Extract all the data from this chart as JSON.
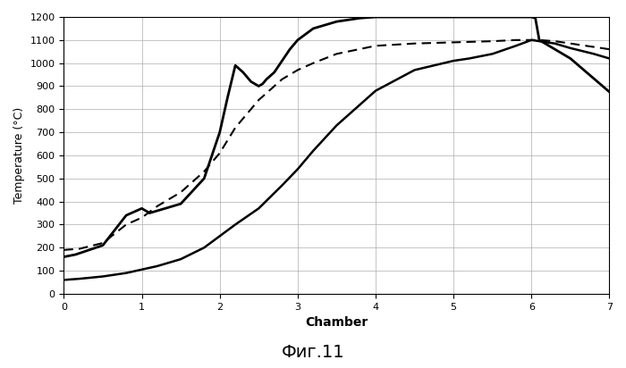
{
  "title": "",
  "xlabel": "Chamber",
  "ylabel": "Temperature (°C)",
  "caption": "Фиг.11",
  "xlim": [
    0,
    7
  ],
  "ylim": [
    0,
    1200
  ],
  "xticks": [
    0,
    1,
    2,
    3,
    4,
    5,
    6,
    7
  ],
  "yticks": [
    0,
    100,
    200,
    300,
    400,
    500,
    600,
    700,
    800,
    900,
    1000,
    1100,
    1200
  ],
  "curve1_x": [
    0,
    0.15,
    0.5,
    0.8,
    1.0,
    1.05,
    1.1,
    1.5,
    1.8,
    2.0,
    2.1,
    2.2,
    2.3,
    2.4,
    2.5,
    2.55,
    2.6,
    2.7,
    2.8,
    2.9,
    3.0,
    3.2,
    3.5,
    3.8,
    4.0,
    4.5,
    5.0,
    5.5,
    6.0,
    6.05,
    6.1,
    6.3,
    6.5,
    7.0
  ],
  "curve1_y": [
    160,
    170,
    210,
    340,
    370,
    360,
    350,
    390,
    500,
    700,
    850,
    990,
    960,
    920,
    900,
    910,
    930,
    960,
    1010,
    1060,
    1100,
    1150,
    1180,
    1195,
    1200,
    1200,
    1200,
    1200,
    1200,
    1195,
    1100,
    1060,
    1020,
    875
  ],
  "curve2_x": [
    0,
    0.2,
    0.5,
    0.8,
    1.0,
    1.2,
    1.5,
    1.8,
    2.0,
    2.2,
    2.4,
    2.5,
    2.6,
    2.8,
    3.0,
    3.2,
    3.5,
    4.0,
    4.5,
    5.0,
    5.2,
    5.5,
    5.8,
    6.0,
    6.1,
    6.3,
    6.5,
    6.8,
    7.0
  ],
  "curve2_y": [
    190,
    195,
    220,
    300,
    330,
    380,
    440,
    530,
    610,
    720,
    800,
    840,
    870,
    930,
    970,
    1000,
    1040,
    1075,
    1085,
    1090,
    1092,
    1095,
    1100,
    1100,
    1100,
    1095,
    1085,
    1070,
    1060
  ],
  "curve3_x": [
    0,
    0.2,
    0.5,
    0.8,
    1.0,
    1.2,
    1.5,
    1.8,
    2.0,
    2.2,
    2.5,
    2.8,
    3.0,
    3.2,
    3.5,
    4.0,
    4.5,
    5.0,
    5.2,
    5.5,
    5.8,
    6.0,
    6.1,
    6.3,
    6.5,
    6.8,
    7.0
  ],
  "curve3_y": [
    60,
    65,
    75,
    90,
    105,
    120,
    150,
    200,
    250,
    300,
    370,
    470,
    540,
    620,
    730,
    880,
    970,
    1010,
    1020,
    1040,
    1075,
    1100,
    1095,
    1085,
    1065,
    1040,
    1020
  ],
  "curve1_color": "#000000",
  "curve2_color": "#000000",
  "curve3_color": "#000000",
  "bg_color": "#ffffff",
  "grid_color": "#aaaaaa"
}
